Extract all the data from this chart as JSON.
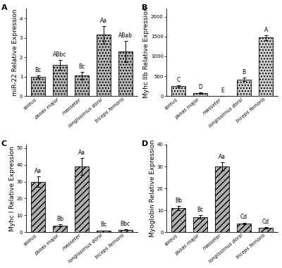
{
  "panel_A": {
    "title": "A",
    "ylabel": "miR-22 Relative Expression",
    "categories": [
      "soleus",
      "psoas major",
      "masseter",
      "longissimus dorsi",
      "biceps femoris"
    ],
    "values": [
      1.0,
      1.6,
      1.05,
      3.15,
      2.3
    ],
    "errors": [
      0.08,
      0.25,
      0.2,
      0.45,
      0.55
    ],
    "labels": [
      "Bc",
      "ABbc",
      "Bc",
      "Aa",
      "ABab"
    ],
    "ylim": [
      0,
      4.5
    ],
    "yticks": [
      0,
      1,
      2,
      3,
      4
    ],
    "hatch": "....",
    "bar_color": "#b8b8b8"
  },
  "panel_B": {
    "title": "B",
    "ylabel": "Myhc IIb Relative Expression",
    "categories": [
      "soleus",
      "psoas major",
      "masseter",
      "longissimus dorsi",
      "biceps femoris"
    ],
    "values": [
      250,
      75,
      10,
      420,
      1470
    ],
    "errors": [
      30,
      15,
      5,
      40,
      60
    ],
    "labels": [
      "C",
      "D",
      "E",
      "B",
      "A"
    ],
    "ylim": [
      0,
      2200
    ],
    "yticks": [
      0,
      500,
      1000,
      1500,
      2000
    ],
    "hatch": "....",
    "bar_color": "#d0d0d0"
  },
  "panel_C": {
    "title": "C",
    "ylabel": "Myhc I Relative Expression",
    "categories": [
      "soleus",
      "psoas major",
      "masseter",
      "longissimus dorsi",
      "biceps femoris"
    ],
    "values": [
      30,
      4,
      39,
      1.0,
      1.5
    ],
    "errors": [
      3.0,
      0.5,
      5.0,
      0.15,
      0.25
    ],
    "labels": [
      "Aa",
      "Bb",
      "Aa",
      "Bc",
      "Bbc"
    ],
    "ylim": [
      0,
      52
    ],
    "yticks": [
      0,
      10,
      20,
      30,
      40,
      50
    ],
    "hatch": "////",
    "bar_color": "#b0b0b0"
  },
  "panel_D": {
    "title": "D",
    "ylabel": "Myoglobin Relative Expression",
    "categories": [
      "soleus",
      "psoas major",
      "masseter",
      "longissimus dorsi",
      "biceps femoris"
    ],
    "values": [
      11,
      7,
      30,
      4,
      2
    ],
    "errors": [
      1.0,
      0.7,
      2.0,
      0.4,
      0.3
    ],
    "labels": [
      "Bb",
      "Bc",
      "Aa",
      "Cd",
      "Cd"
    ],
    "ylim": [
      0,
      40
    ],
    "yticks": [
      0,
      10,
      20,
      30,
      40
    ],
    "hatch": "////",
    "bar_color": "#b0b0b0"
  },
  "bar_edgecolor": "#000000",
  "error_color": "#000000",
  "label_fontsize": 5.5,
  "tick_fontsize": 5.0,
  "ylabel_fontsize": 6.5,
  "panel_label_fontsize": 8,
  "background_color": "#ffffff"
}
